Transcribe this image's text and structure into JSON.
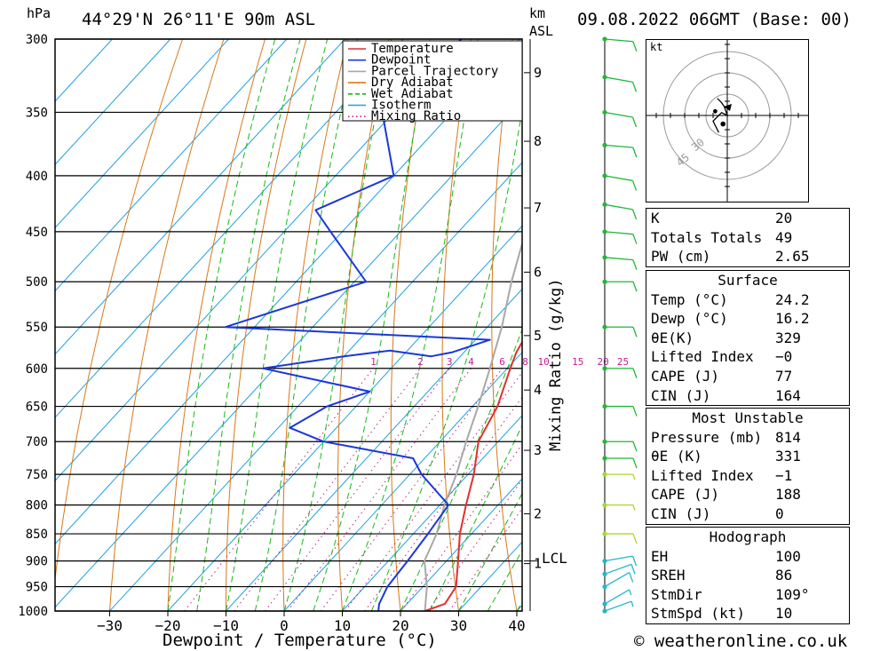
{
  "header": {
    "pressure_unit": "hPa",
    "location": "44°29'N  26°11'E  90m  ASL",
    "km_unit": "km",
    "asl_unit": "ASL",
    "datetime": "09.08.2022  06GMT  (Base: 00)"
  },
  "footer": {
    "credit": "© weatheronline.co.uk"
  },
  "chart_data": {
    "type": "skew-t",
    "xlabel": "Dewpoint / Temperature (°C)",
    "right_axis_label": "Mixing Ratio (g/kg)",
    "pressure_levels": [
      300,
      350,
      400,
      450,
      500,
      550,
      600,
      650,
      700,
      750,
      800,
      850,
      900,
      950,
      1000
    ],
    "temperature_ticks": [
      -30,
      -20,
      -10,
      0,
      10,
      20,
      30,
      40
    ],
    "height_km_ticks": [
      {
        "label": "9",
        "p": 322
      },
      {
        "label": "8",
        "p": 372
      },
      {
        "label": "7",
        "p": 428
      },
      {
        "label": "6",
        "p": 490
      },
      {
        "label": "5",
        "p": 560
      },
      {
        "label": "4",
        "p": 628
      },
      {
        "label": "3",
        "p": 713
      },
      {
        "label": "2",
        "p": 815
      },
      {
        "label": "1",
        "p": 905
      }
    ],
    "lcl_label": "LCL",
    "lcl_pressure": 900,
    "mixing_ratio_labels": [
      "1",
      "2",
      "3",
      "4",
      "6",
      "8",
      "10",
      "15",
      "20",
      "25"
    ],
    "legend": [
      {
        "name": "Temperature",
        "color": "#e03030",
        "style": "solid"
      },
      {
        "name": "Dewpoint",
        "color": "#1a38d8",
        "style": "solid"
      },
      {
        "name": "Parcel Trajectory",
        "color": "#a8a8a8",
        "style": "solid"
      },
      {
        "name": "Dry Adiabat",
        "color": "#d87818",
        "style": "solid"
      },
      {
        "name": "Wet Adiabat",
        "color": "#18b818",
        "style": "dashed"
      },
      {
        "name": "Isotherm",
        "color": "#20a0e0",
        "style": "solid"
      },
      {
        "name": "Mixing Ratio",
        "color": "#c02090",
        "style": "dotted"
      }
    ],
    "temperature": [
      [
        1000,
        24.2
      ],
      [
        985,
        26.5
      ],
      [
        950,
        25.7
      ],
      [
        900,
        22.0
      ],
      [
        850,
        18.0
      ],
      [
        800,
        14.5
      ],
      [
        750,
        11.0
      ],
      [
        710,
        7.5
      ],
      [
        700,
        6.6
      ],
      [
        650,
        4.3
      ],
      [
        600,
        0.5
      ],
      [
        580,
        -1.0
      ],
      [
        560,
        -2.0
      ],
      [
        550,
        -3.5
      ],
      [
        500,
        -7.5
      ],
      [
        450,
        -12.0
      ],
      [
        420,
        -15.5
      ],
      [
        400,
        -18.0
      ],
      [
        350,
        -24.5
      ],
      [
        300,
        -31.5
      ]
    ],
    "dewpoint": [
      [
        1000,
        16.2
      ],
      [
        985,
        15.2
      ],
      [
        950,
        13.9
      ],
      [
        900,
        13.3
      ],
      [
        850,
        12.5
      ],
      [
        800,
        11.5
      ],
      [
        750,
        2.0
      ],
      [
        725,
        -2.0
      ],
      [
        700,
        -20.0
      ],
      [
        680,
        -28.0
      ],
      [
        650,
        -25.0
      ],
      [
        630,
        -20.0
      ],
      [
        600,
        -42.0
      ],
      [
        585,
        -30.0
      ],
      [
        578,
        -23.0
      ],
      [
        585,
        -15.0
      ],
      [
        580,
        -12.0
      ],
      [
        565,
        -7.5
      ],
      [
        550,
        -55.0
      ],
      [
        500,
        -38.0
      ],
      [
        450,
        -52.0
      ],
      [
        430,
        -58.0
      ],
      [
        400,
        -50.0
      ],
      [
        350,
        -62.0
      ],
      [
        300,
        -60.0
      ]
    ],
    "parcel": [
      [
        1000,
        24.2
      ],
      [
        950,
        20.7
      ],
      [
        900,
        16.2
      ],
      [
        850,
        14.0
      ],
      [
        800,
        10.8
      ],
      [
        750,
        8.0
      ],
      [
        700,
        4.5
      ],
      [
        650,
        1.0
      ],
      [
        600,
        -3.0
      ],
      [
        550,
        -7.5
      ],
      [
        500,
        -13.0
      ],
      [
        450,
        -18.5
      ],
      [
        400,
        -25.0
      ],
      [
        350,
        -32.5
      ],
      [
        300,
        -41.5
      ]
    ],
    "wind_barbs": [
      {
        "p": 1000,
        "dir": 290,
        "spd": 5
      },
      {
        "p": 985,
        "dir": 300,
        "spd": 5
      },
      {
        "p": 950,
        "dir": 300,
        "spd": 10
      },
      {
        "p": 925,
        "dir": 290,
        "spd": 10
      },
      {
        "p": 900,
        "dir": 280,
        "spd": 10
      },
      {
        "p": 850,
        "dir": 270,
        "spd": 10
      },
      {
        "p": 800,
        "dir": 270,
        "spd": 5
      },
      {
        "p": 750,
        "dir": 270,
        "spd": 5
      },
      {
        "p": 725,
        "dir": 270,
        "spd": 10
      },
      {
        "p": 700,
        "dir": 270,
        "spd": 10
      },
      {
        "p": 650,
        "dir": 270,
        "spd": 10
      },
      {
        "p": 600,
        "dir": 270,
        "spd": 10
      },
      {
        "p": 550,
        "dir": 270,
        "spd": 10
      },
      {
        "p": 500,
        "dir": 270,
        "spd": 10
      },
      {
        "p": 475,
        "dir": 265,
        "spd": 10
      },
      {
        "p": 450,
        "dir": 265,
        "spd": 10
      },
      {
        "p": 425,
        "dir": 260,
        "spd": 10
      },
      {
        "p": 400,
        "dir": 260,
        "spd": 10
      },
      {
        "p": 375,
        "dir": 265,
        "spd": 10
      },
      {
        "p": 350,
        "dir": 260,
        "spd": 10
      },
      {
        "p": 325,
        "dir": 260,
        "spd": 10
      },
      {
        "p": 300,
        "dir": 265,
        "spd": 10
      }
    ],
    "hodograph": {
      "unit": "kt",
      "ring_labels": [
        "45",
        "30"
      ],
      "trace_kt": [
        [
          -6,
          -12
        ],
        [
          -10,
          -4
        ],
        [
          -4,
          2
        ],
        [
          0,
          0
        ],
        [
          -2,
          6
        ],
        [
          -4,
          9
        ],
        [
          -7,
          12
        ]
      ],
      "storm_motion": {
        "dir": 109,
        "spd": 10
      }
    }
  },
  "params": {
    "basic": [
      {
        "k": "K",
        "v": "20"
      },
      {
        "k": "Totals Totals",
        "v": "49"
      },
      {
        "k": "PW (cm)",
        "v": "2.65"
      }
    ],
    "surface": {
      "title": "Surface",
      "rows": [
        {
          "k": "Temp (°C)",
          "v": "24.2"
        },
        {
          "k": "Dewp (°C)",
          "v": "16.2"
        },
        {
          "k": "θE(K)",
          "v": "329"
        },
        {
          "k": "Lifted Index",
          "v": "−0"
        },
        {
          "k": "CAPE (J)",
          "v": "77"
        },
        {
          "k": "CIN (J)",
          "v": "164"
        }
      ]
    },
    "most_unstable": {
      "title": "Most Unstable",
      "rows": [
        {
          "k": "Pressure (mb)",
          "v": "814"
        },
        {
          "k": "θE (K)",
          "v": "331"
        },
        {
          "k": "Lifted Index",
          "v": "−1"
        },
        {
          "k": "CAPE (J)",
          "v": "188"
        },
        {
          "k": "CIN (J)",
          "v": "0"
        }
      ]
    },
    "hodograph": {
      "title": "Hodograph",
      "rows": [
        {
          "k": "EH",
          "v": "100"
        },
        {
          "k": "SREH",
          "v": "86"
        },
        {
          "k": "StmDir",
          "v": "109°"
        },
        {
          "k": "StmSpd (kt)",
          "v": "10"
        }
      ]
    }
  }
}
